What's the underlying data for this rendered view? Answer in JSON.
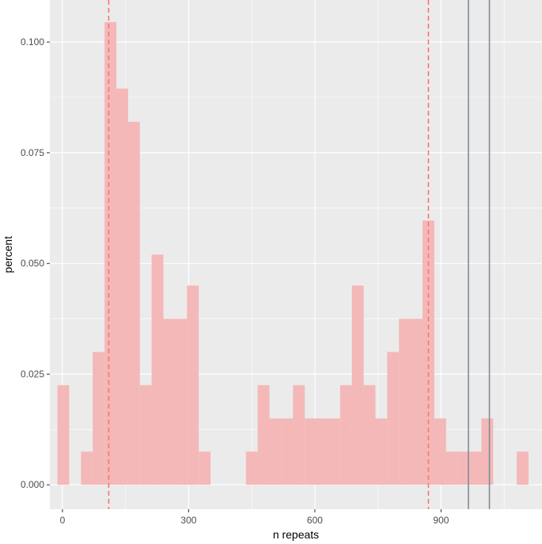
{
  "chart_data": {
    "type": "bar",
    "xlabel": "n repeats",
    "ylabel": "percent",
    "xlim": [
      -30,
      1140
    ],
    "ylim": [
      -0.0055,
      0.1095
    ],
    "x_ticks": [
      0,
      300,
      600,
      900
    ],
    "x_tick_labels": [
      "0",
      "300",
      "600",
      "900"
    ],
    "y_ticks": [
      0,
      0.025,
      0.05,
      0.075,
      0.1
    ],
    "y_tick_labels": [
      "0.000",
      "0.025",
      "0.050",
      "0.075",
      "0.100"
    ],
    "bin_width": 28,
    "bin_starts": [
      -12,
      44,
      72,
      100,
      128,
      156,
      184,
      212,
      240,
      268,
      296,
      324,
      436,
      464,
      492,
      520,
      548,
      576,
      604,
      632,
      660,
      688,
      716,
      744,
      772,
      800,
      828,
      856,
      884,
      912,
      940,
      968,
      996,
      1080
    ],
    "values": [
      0.0225,
      0.0075,
      0.03,
      0.1045,
      0.0895,
      0.082,
      0.0225,
      0.052,
      0.0375,
      0.0375,
      0.045,
      0.0075,
      0.0075,
      0.0225,
      0.015,
      0.015,
      0.0225,
      0.015,
      0.015,
      0.015,
      0.0225,
      0.045,
      0.0225,
      0.015,
      0.03,
      0.0375,
      0.0375,
      0.0597,
      0.015,
      0.0075,
      0.0075,
      0.0075,
      0.015,
      0.0075
    ],
    "vlines_dashed": [
      110,
      870
    ],
    "vlines_solid": [
      965,
      1015
    ],
    "colors": {
      "bar_fill": "#f4b8b8",
      "dashed_line": "#f8766d",
      "solid_line": "#7f8c99",
      "panel_background": "#ebebeb",
      "grid": "#ffffff"
    },
    "grid": true
  }
}
